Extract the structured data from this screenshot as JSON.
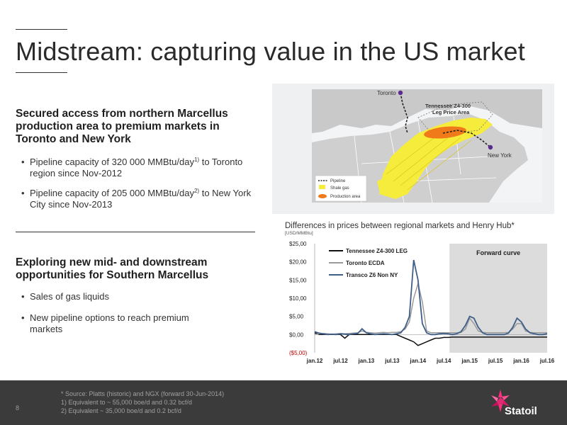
{
  "slide": {
    "title": "Midstream: capturing value in the US market",
    "page_number": "8"
  },
  "section1": {
    "heading": "Secured access from northern Marcellus production area to premium markets in Toronto and New York",
    "bullets": [
      {
        "text": "Pipeline capacity of 320 000 MMBtu/day",
        "sup": "1)",
        "tail": " to Toronto region since Nov-2012"
      },
      {
        "text": "Pipeline capacity of 205 000 MMBtu/day",
        "sup": "2)",
        "tail": " to New York City since Nov-2013"
      }
    ]
  },
  "section2": {
    "heading": "Exploring new mid- and downstream opportunities for Southern Marcellus",
    "bullets": [
      {
        "text": "Sales of gas liquids"
      },
      {
        "text": "New pipeline options to reach premium markets"
      }
    ]
  },
  "map": {
    "toronto_label": "Toronto",
    "newyork_label": "New York",
    "area_label_line1": "Tennessee Z4-300",
    "area_label_line2": "Leg Price Area",
    "legend": {
      "pipeline": "Pipeline",
      "shale": "Shale gas",
      "production": "Production area"
    },
    "colors": {
      "shale": "#f6ec3b",
      "production": "#f07a1a",
      "land": "#c9c9c9",
      "water": "#f3f4f5",
      "pipeline": "#222222",
      "city_marker": "#5b2a8c"
    }
  },
  "chart": {
    "title": "Differences in prices between regional markets and Henry Hub*",
    "unit": "[USD/MMBtu]",
    "forward_label": "Forward curve"
  },
  "chart_data": {
    "type": "line",
    "title": "Differences in prices between regional markets and Henry Hub*",
    "ylabel": "[USD/MMBtu]",
    "ylim": [
      -5,
      25
    ],
    "yticks": [
      "$25,00",
      "$20,00",
      "$15,00",
      "$10,00",
      "$5,00",
      "$0,00",
      "($5,00)"
    ],
    "ytick_values": [
      25,
      20,
      15,
      10,
      5,
      0,
      -5
    ],
    "x_labels": [
      "jan.12",
      "jul.12",
      "jan.13",
      "jul.13",
      "jan.14",
      "jul.14",
      "jan.15",
      "jul.15",
      "jan.16",
      "jul.16"
    ],
    "forward_curve_from": "jul.14",
    "forward_shade_color": "#dcdcdc",
    "series": [
      {
        "name": "Tennessee Z4-300 LEG",
        "color": "#111111",
        "points": [
          [
            0,
            0.5
          ],
          [
            1,
            0
          ],
          [
            2,
            0
          ],
          [
            3,
            0
          ],
          [
            4,
            0
          ],
          [
            5,
            0
          ],
          [
            6,
            0
          ],
          [
            7,
            -1
          ],
          [
            8,
            0
          ],
          [
            9,
            0
          ],
          [
            10,
            0
          ],
          [
            11,
            0
          ],
          [
            12,
            0
          ],
          [
            13,
            0
          ],
          [
            14,
            0
          ],
          [
            15,
            0
          ],
          [
            16,
            0
          ],
          [
            17,
            0
          ],
          [
            18,
            0
          ],
          [
            19,
            0
          ],
          [
            20,
            -0.5
          ],
          [
            21,
            -1
          ],
          [
            22,
            -1.5
          ],
          [
            23,
            -2
          ],
          [
            24,
            -3
          ],
          [
            25,
            -2.5
          ],
          [
            26,
            -2
          ],
          [
            27,
            -1.5
          ],
          [
            28,
            -1
          ],
          [
            29,
            -1
          ],
          [
            30,
            -0.8
          ],
          [
            31,
            -0.8
          ],
          [
            32,
            -0.7
          ],
          [
            33,
            -0.7
          ],
          [
            34,
            -0.7
          ],
          [
            35,
            -0.7
          ],
          [
            36,
            -0.7
          ],
          [
            37,
            -0.7
          ],
          [
            38,
            -0.7
          ],
          [
            39,
            -0.7
          ],
          [
            40,
            -0.7
          ],
          [
            41,
            -0.7
          ],
          [
            42,
            -0.7
          ],
          [
            43,
            -0.7
          ],
          [
            44,
            -0.7
          ],
          [
            45,
            -0.7
          ],
          [
            46,
            -0.7
          ],
          [
            47,
            -0.7
          ],
          [
            48,
            -0.7
          ],
          [
            49,
            -0.7
          ],
          [
            50,
            -0.7
          ],
          [
            51,
            -0.7
          ],
          [
            52,
            -0.7
          ],
          [
            53,
            -0.7
          ],
          [
            54,
            -0.7
          ]
        ]
      },
      {
        "name": "Toronto ECDA",
        "color": "#9a9a9a",
        "points": [
          [
            0,
            0
          ],
          [
            1,
            0.2
          ],
          [
            2,
            0.3
          ],
          [
            3,
            0.2
          ],
          [
            4,
            0.1
          ],
          [
            5,
            0.2
          ],
          [
            6,
            0.3
          ],
          [
            7,
            0.2
          ],
          [
            8,
            0.3
          ],
          [
            9,
            0.4
          ],
          [
            10,
            0.5
          ],
          [
            11,
            1.0
          ],
          [
            12,
            0.6
          ],
          [
            13,
            0.5
          ],
          [
            14,
            0.4
          ],
          [
            15,
            0.5
          ],
          [
            16,
            0.6
          ],
          [
            17,
            0.5
          ],
          [
            18,
            0.6
          ],
          [
            19,
            0.6
          ],
          [
            20,
            0.8
          ],
          [
            21,
            1.5
          ],
          [
            22,
            3.5
          ],
          [
            23,
            10
          ],
          [
            24,
            14
          ],
          [
            25,
            9
          ],
          [
            26,
            1
          ],
          [
            27,
            0.5
          ],
          [
            28,
            0.5
          ],
          [
            29,
            0.5
          ],
          [
            30,
            0.5
          ],
          [
            31,
            0.5
          ],
          [
            32,
            0.5
          ],
          [
            33,
            0.5
          ],
          [
            34,
            0.6
          ],
          [
            35,
            1.5
          ],
          [
            36,
            4.5
          ],
          [
            37,
            3
          ],
          [
            38,
            1
          ],
          [
            39,
            0.6
          ],
          [
            40,
            0.5
          ],
          [
            41,
            0.5
          ],
          [
            42,
            0.5
          ],
          [
            43,
            0.5
          ],
          [
            44,
            0.5
          ],
          [
            45,
            0.6
          ],
          [
            46,
            1.5
          ],
          [
            47,
            3
          ],
          [
            48,
            3
          ],
          [
            49,
            1
          ],
          [
            50,
            0.6
          ],
          [
            51,
            0.5
          ],
          [
            52,
            0.5
          ],
          [
            53,
            0.5
          ],
          [
            54,
            0.5
          ]
        ]
      },
      {
        "name": "Transco Z6 Non NY",
        "color": "#3f5f88",
        "points": [
          [
            0,
            0.8
          ],
          [
            1,
            0.4
          ],
          [
            2,
            0.2
          ],
          [
            3,
            0
          ],
          [
            4,
            0.1
          ],
          [
            5,
            0
          ],
          [
            6,
            0.2
          ],
          [
            7,
            0.1
          ],
          [
            8,
            0
          ],
          [
            9,
            0.2
          ],
          [
            10,
            0.3
          ],
          [
            11,
            1.6
          ],
          [
            12,
            0.5
          ],
          [
            13,
            0.2
          ],
          [
            14,
            0
          ],
          [
            15,
            0.1
          ],
          [
            16,
            0.2
          ],
          [
            17,
            0.1
          ],
          [
            18,
            0
          ],
          [
            19,
            0.2
          ],
          [
            20,
            0.5
          ],
          [
            21,
            2
          ],
          [
            22,
            5
          ],
          [
            23,
            20.5
          ],
          [
            24,
            15
          ],
          [
            25,
            3
          ],
          [
            26,
            0.5
          ],
          [
            27,
            0
          ],
          [
            28,
            0
          ],
          [
            29,
            0.2
          ],
          [
            30,
            0.3
          ],
          [
            31,
            0.2
          ],
          [
            32,
            0
          ],
          [
            33,
            0.2
          ],
          [
            34,
            0.8
          ],
          [
            35,
            2.5
          ],
          [
            36,
            5
          ],
          [
            37,
            4.5
          ],
          [
            38,
            2
          ],
          [
            39,
            0.5
          ],
          [
            40,
            0
          ],
          [
            41,
            0
          ],
          [
            42,
            0
          ],
          [
            43,
            0
          ],
          [
            44,
            0
          ],
          [
            45,
            0.4
          ],
          [
            46,
            2
          ],
          [
            47,
            4.5
          ],
          [
            48,
            3.5
          ],
          [
            49,
            1.5
          ],
          [
            50,
            0.5
          ],
          [
            51,
            0.2
          ],
          [
            52,
            0
          ],
          [
            53,
            0
          ],
          [
            54,
            0.2
          ]
        ]
      }
    ]
  },
  "footer": {
    "notes": [
      "*   Source: Platts (historic) and NGX (forward 30-Jun-2014)",
      "1) Equivalent to ~ 55,000 boe/d  and 0.32 bcf/d",
      "2) Equivalent ~ 35,000 boe/d and 0.2 bcf/d"
    ],
    "logo_text": "Statoil"
  }
}
